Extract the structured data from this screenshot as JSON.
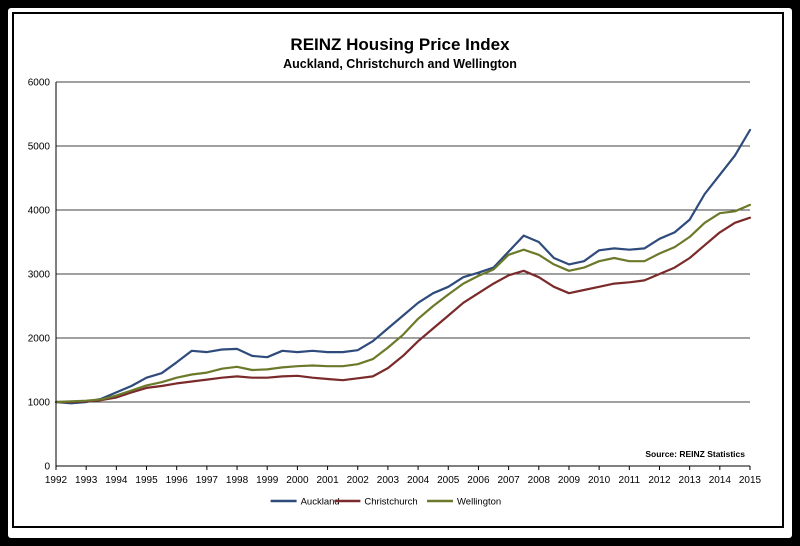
{
  "chart_data": {
    "type": "line",
    "title": "REINZ Housing Price Index",
    "subtitle": "Auckland, Christchurch and Wellington",
    "source": "Source: REINZ Statistics",
    "xlabel": "",
    "ylabel": "",
    "xlim": [
      1992,
      2015
    ],
    "ylim": [
      0,
      6000
    ],
    "x_ticks": [
      "1992",
      "1993",
      "1994",
      "1995",
      "1996",
      "1997",
      "1998",
      "1999",
      "2000",
      "2001",
      "2002",
      "2003",
      "2004",
      "2005",
      "2006",
      "2007",
      "2008",
      "2009",
      "2010",
      "2011",
      "2012",
      "2013",
      "2014",
      "2015"
    ],
    "y_ticks": [
      "0",
      "1000",
      "2000",
      "3000",
      "4000",
      "5000",
      "6000"
    ],
    "grid": "horizontal",
    "legend_position": "bottom",
    "x": [
      1992.0,
      1992.5,
      1993.0,
      1993.5,
      1994.0,
      1994.5,
      1995.0,
      1995.5,
      1996.0,
      1996.5,
      1997.0,
      1997.5,
      1998.0,
      1998.5,
      1999.0,
      1999.5,
      2000.0,
      2000.5,
      2001.0,
      2001.5,
      2002.0,
      2002.5,
      2003.0,
      2003.5,
      2004.0,
      2004.5,
      2005.0,
      2005.5,
      2006.0,
      2006.5,
      2007.0,
      2007.5,
      2008.0,
      2008.5,
      2009.0,
      2009.5,
      2010.0,
      2010.5,
      2011.0,
      2011.5,
      2012.0,
      2012.5,
      2013.0,
      2013.5,
      2014.0,
      2014.5,
      2015.0
    ],
    "series": [
      {
        "name": "Auckland",
        "color": "#2f4b7c",
        "values": [
          1000,
          980,
          1000,
          1050,
          1150,
          1250,
          1380,
          1450,
          1620,
          1800,
          1780,
          1820,
          1830,
          1720,
          1700,
          1800,
          1780,
          1800,
          1780,
          1780,
          1810,
          1950,
          2150,
          2350,
          2550,
          2700,
          2800,
          2950,
          3020,
          3100,
          3350,
          3600,
          3500,
          3250,
          3150,
          3200,
          3370,
          3400,
          3380,
          3400,
          3550,
          3650,
          3850,
          4250,
          4550,
          4850,
          5250
        ]
      },
      {
        "name": "Christchurch",
        "color": "#7a2a2a",
        "values": [
          1000,
          1000,
          1010,
          1030,
          1070,
          1150,
          1220,
          1250,
          1290,
          1320,
          1350,
          1380,
          1400,
          1380,
          1380,
          1400,
          1410,
          1380,
          1360,
          1340,
          1370,
          1400,
          1530,
          1720,
          1950,
          2150,
          2350,
          2550,
          2700,
          2850,
          2980,
          3050,
          2950,
          2800,
          2700,
          2750,
          2800,
          2850,
          2870,
          2900,
          3000,
          3100,
          3250,
          3450,
          3650,
          3800,
          3880
        ]
      },
      {
        "name": "Wellington",
        "color": "#6b7a2a",
        "values": [
          1000,
          1010,
          1020,
          1040,
          1100,
          1180,
          1260,
          1310,
          1380,
          1430,
          1460,
          1520,
          1550,
          1500,
          1510,
          1540,
          1560,
          1570,
          1560,
          1560,
          1590,
          1670,
          1850,
          2050,
          2300,
          2500,
          2680,
          2850,
          2970,
          3070,
          3300,
          3380,
          3300,
          3150,
          3050,
          3100,
          3200,
          3250,
          3200,
          3200,
          3320,
          3420,
          3580,
          3800,
          3950,
          3980,
          4080
        ]
      }
    ]
  }
}
